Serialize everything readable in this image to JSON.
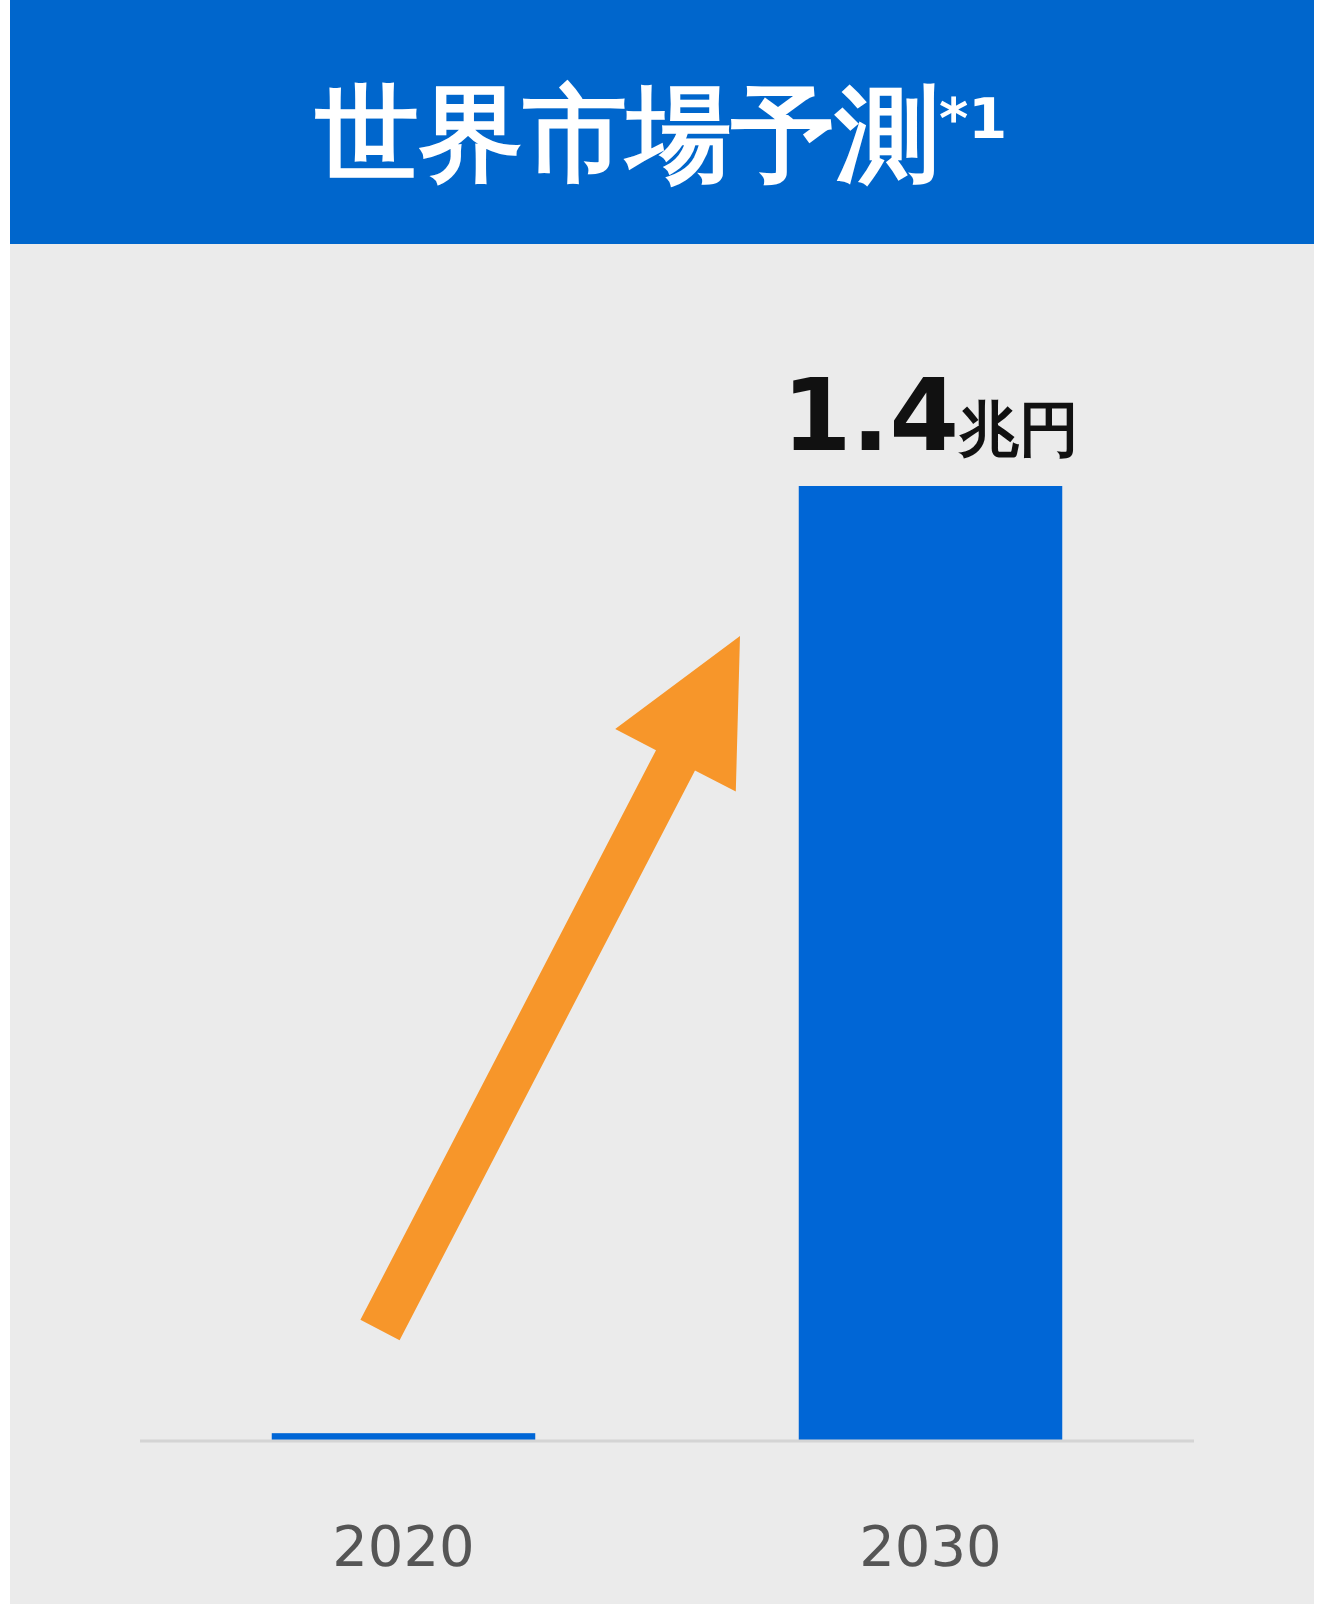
{
  "chart_data": {
    "type": "bar",
    "title": "世界市場予測$^{*1}$",
    "categories": [
      "2020",
      "2030"
    ],
    "values": [
      0.01,
      1.4
    ],
    "colors": [
      "#0066d6",
      "#0066d6"
    ],
    "value_labels": [
      null,
      "1.4兆円"
    ]
  }
}
